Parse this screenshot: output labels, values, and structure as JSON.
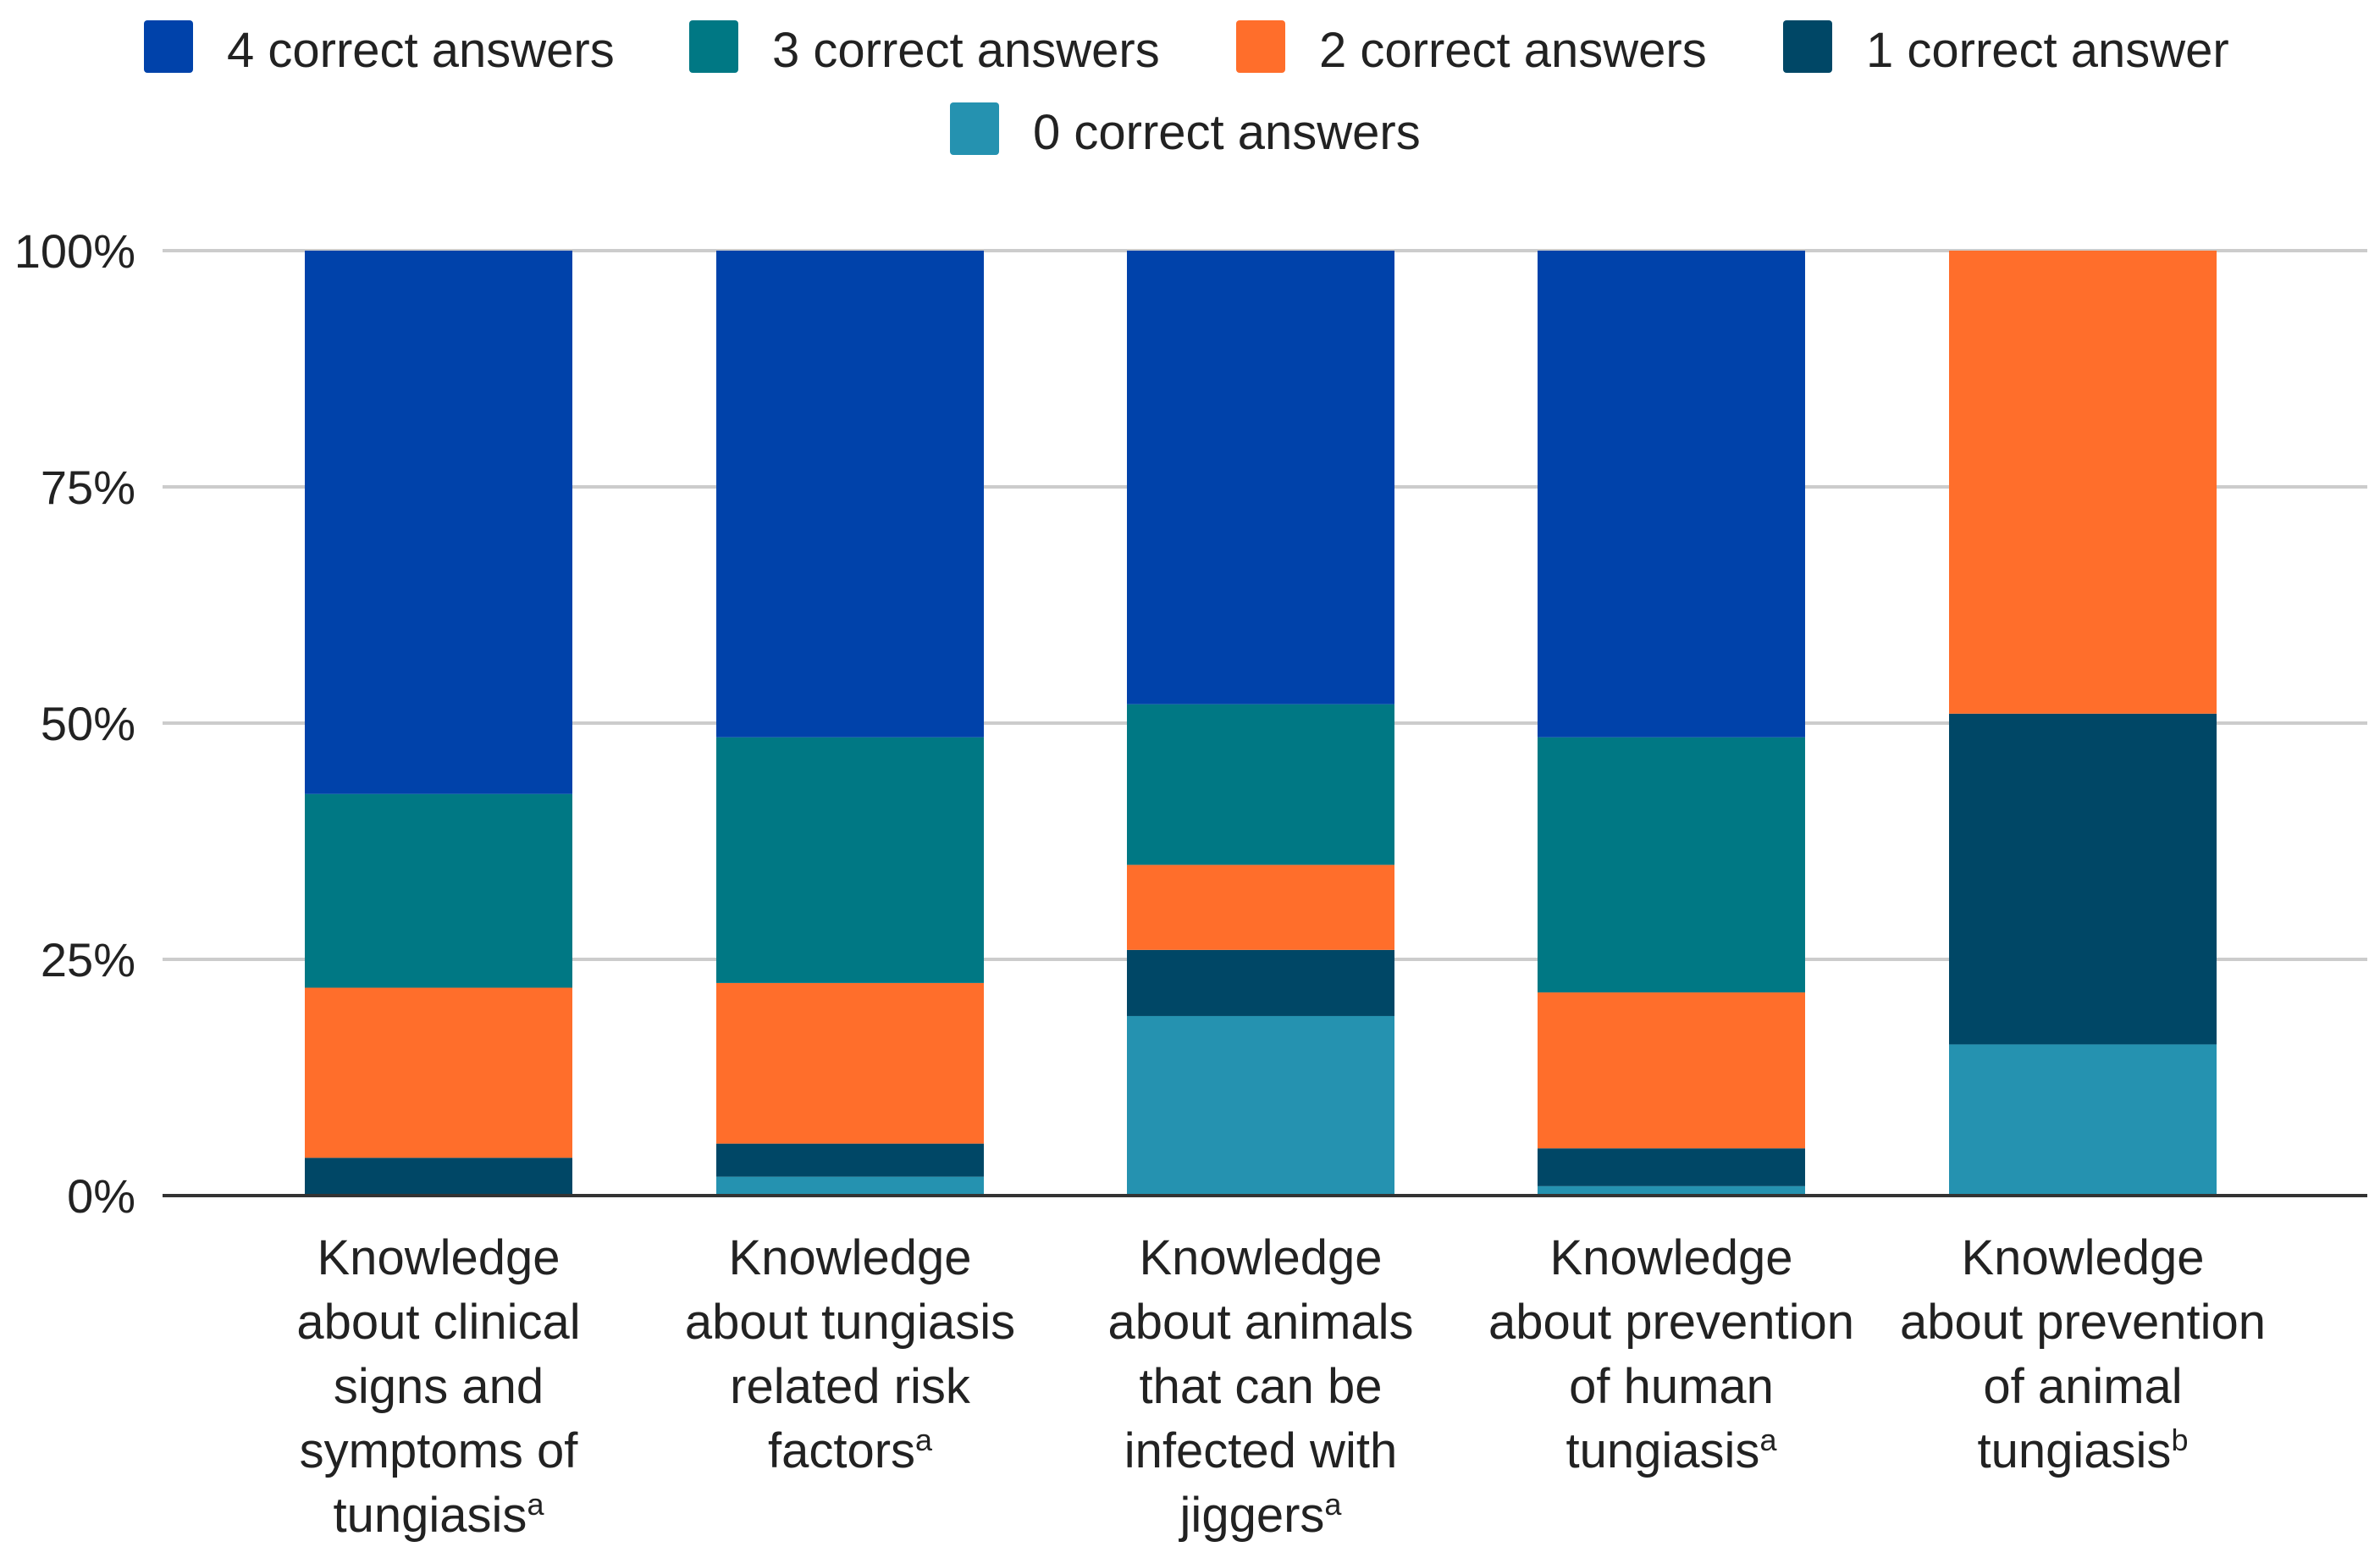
{
  "chart_data": {
    "type": "bar",
    "stacked": true,
    "percent": true,
    "ylim": [
      0,
      100
    ],
    "yticks": [
      0,
      25,
      50,
      75,
      100
    ],
    "ytick_labels": [
      "0%",
      "25%",
      "50%",
      "75%",
      "100%"
    ],
    "grid": true,
    "legend_position": "top-center",
    "categories": [
      {
        "lines": [
          "Knowledge",
          "about clinical",
          "signs and",
          "symptoms of",
          "tungiasis"
        ],
        "sup": "a"
      },
      {
        "lines": [
          "Knowledge",
          "about tungiasis",
          "related risk",
          "factors"
        ],
        "sup": "a"
      },
      {
        "lines": [
          "Knowledge",
          "about animals",
          "that can be",
          "infected with",
          "jiggers"
        ],
        "sup": "a"
      },
      {
        "lines": [
          "Knowledge",
          "about prevention",
          "of human",
          "tungiasis"
        ],
        "sup": "a"
      },
      {
        "lines": [
          "Knowledge",
          "about prevention",
          "of animal",
          "tungiasis"
        ],
        "sup": "b"
      }
    ],
    "series": [
      {
        "name": "0 correct answers",
        "color": "#2592b0",
        "values": [
          0,
          2,
          19,
          1,
          16
        ]
      },
      {
        "name": "1 correct answer",
        "color": "#004766",
        "values": [
          4,
          3.5,
          7,
          4,
          35
        ]
      },
      {
        "name": "2 correct answers",
        "color": "#ff6e2b",
        "values": [
          18,
          17,
          9,
          16.5,
          49
        ]
      },
      {
        "name": "3 correct answers",
        "color": "#007884",
        "values": [
          20.5,
          26,
          17,
          27,
          0
        ]
      },
      {
        "name": "4 correct answers",
        "color": "#0042aa",
        "values": [
          57.5,
          51.5,
          48,
          51.5,
          0
        ]
      }
    ],
    "legend_order": [
      4,
      3,
      2,
      1,
      0
    ]
  }
}
